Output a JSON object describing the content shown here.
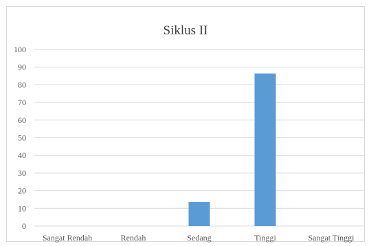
{
  "chart_data": {
    "type": "bar",
    "title": "Siklus II",
    "categories": [
      "Sangat Rendah",
      "Rendah",
      "Sedang",
      "Tinggi",
      "Sangat Tinggi"
    ],
    "values": [
      0,
      0,
      13.6,
      86.4,
      0
    ],
    "xlabel": "",
    "ylabel": "",
    "ylim": [
      0,
      100
    ],
    "yticks": [
      "0",
      "10",
      "20",
      "30",
      "40",
      "50",
      "60",
      "70",
      "80",
      "90",
      "100"
    ],
    "grid": true,
    "legend": "none",
    "bar_color": "#5b9bd5",
    "grid_color": "#d9d9d9",
    "text_color": "#595959"
  }
}
